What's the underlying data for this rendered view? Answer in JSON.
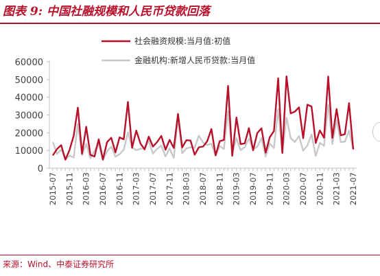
{
  "figure_title": "图表 9:  中国社融规模和人民币贷款回落",
  "source": "来源：Wind、中泰证券研究所",
  "chart_data": {
    "type": "line",
    "title": "",
    "xlabel": "",
    "ylabel": "",
    "ylim": [
      0,
      60000
    ],
    "yticks": [
      0,
      10000,
      20000,
      30000,
      40000,
      50000,
      60000
    ],
    "grid": false,
    "legend_position": "top-center",
    "x_tick_labels": [
      "2015-07",
      "2015-11",
      "2016-03",
      "2016-07",
      "2016-11",
      "2017-03",
      "2017-07",
      "2017-11",
      "2018-03",
      "2018-07",
      "2018-11",
      "2019-03",
      "2019-07",
      "2019-11",
      "2020-03",
      "2020-07",
      "2020-11",
      "2021-03",
      "2021-07"
    ],
    "x": [
      "2015-07",
      "2015-08",
      "2015-09",
      "2015-10",
      "2015-11",
      "2015-12",
      "2016-01",
      "2016-02",
      "2016-03",
      "2016-04",
      "2016-05",
      "2016-06",
      "2016-07",
      "2016-08",
      "2016-09",
      "2016-10",
      "2016-11",
      "2016-12",
      "2017-01",
      "2017-02",
      "2017-03",
      "2017-04",
      "2017-05",
      "2017-06",
      "2017-07",
      "2017-08",
      "2017-09",
      "2017-10",
      "2017-11",
      "2017-12",
      "2018-01",
      "2018-02",
      "2018-03",
      "2018-04",
      "2018-05",
      "2018-06",
      "2018-07",
      "2018-08",
      "2018-09",
      "2018-10",
      "2018-11",
      "2018-12",
      "2019-01",
      "2019-02",
      "2019-03",
      "2019-04",
      "2019-05",
      "2019-06",
      "2019-07",
      "2019-08",
      "2019-09",
      "2019-10",
      "2019-11",
      "2019-12",
      "2020-01",
      "2020-02",
      "2020-03",
      "2020-04",
      "2020-05",
      "2020-06",
      "2020-07",
      "2020-08",
      "2020-09",
      "2020-10",
      "2020-11",
      "2020-12",
      "2021-01",
      "2021-02",
      "2021-03",
      "2021-04",
      "2021-05",
      "2021-06",
      "2021-07"
    ],
    "series": [
      {
        "name": "社会融资规模:当月值:初值",
        "color": "#b8102b",
        "values": [
          7200,
          10800,
          13000,
          4800,
          10200,
          18200,
          34200,
          8200,
          23400,
          7500,
          6600,
          16300,
          4900,
          14700,
          17200,
          8900,
          17400,
          16300,
          37400,
          11500,
          21200,
          13900,
          10600,
          17800,
          12200,
          14800,
          18200,
          10400,
          16000,
          11400,
          30600,
          11700,
          15800,
          15600,
          7600,
          11800,
          12200,
          15200,
          22100,
          7300,
          15200,
          15900,
          46400,
          7000,
          28600,
          13600,
          14000,
          22600,
          10100,
          19800,
          22500,
          8800,
          17500,
          21000,
          50700,
          8600,
          51800,
          30900,
          31900,
          34300,
          16900,
          35800,
          34800,
          14200,
          21300,
          17200,
          51700,
          17100,
          33400,
          18500,
          19200,
          36700,
          10600
        ]
      },
      {
        "name": "金融机构:新增人民币贷款:当月值",
        "color": "#c8c8c8",
        "values": [
          14800,
          8100,
          10500,
          5100,
          7100,
          6000,
          25100,
          7300,
          13700,
          5600,
          9900,
          13800,
          4600,
          9500,
          12200,
          6500,
          7900,
          10400,
          20300,
          11700,
          10200,
          11000,
          11100,
          15400,
          8300,
          10900,
          12700,
          6600,
          11200,
          5800,
          29000,
          8400,
          11200,
          11800,
          11500,
          18400,
          14500,
          13100,
          13800,
          7000,
          12500,
          10800,
          32300,
          8900,
          16900,
          10200,
          11800,
          16600,
          10600,
          12100,
          16900,
          6600,
          13900,
          11400,
          33400,
          9000,
          28500,
          17000,
          14800,
          18100,
          9900,
          12800,
          19000,
          6900,
          14300,
          12600,
          35800,
          13600,
          27300,
          14700,
          15000,
          21200,
          10800
        ]
      }
    ]
  }
}
